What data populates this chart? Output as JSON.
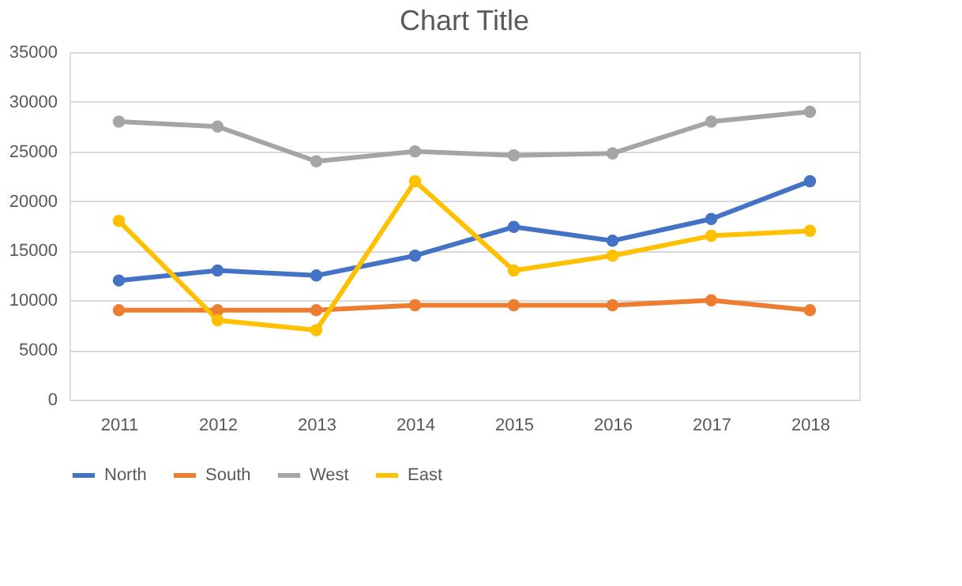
{
  "chart_data": {
    "type": "line",
    "title": "Chart Title",
    "categories": [
      "2011",
      "2012",
      "2013",
      "2014",
      "2015",
      "2016",
      "2017",
      "2018"
    ],
    "series": [
      {
        "name": "North",
        "color": "#4472c4",
        "values": [
          12000,
          13000,
          12500,
          14500,
          17400,
          16000,
          18200,
          22000
        ]
      },
      {
        "name": "South",
        "color": "#ed7d31",
        "values": [
          9000,
          9000,
          9000,
          9500,
          9500,
          9500,
          10000,
          9000
        ]
      },
      {
        "name": "West",
        "color": "#a5a5a5",
        "values": [
          28000,
          27500,
          24000,
          25000,
          24600,
          24800,
          28000,
          29000
        ]
      },
      {
        "name": "East",
        "color": "#ffc000",
        "values": [
          18000,
          8000,
          7000,
          22000,
          13000,
          14500,
          16500,
          17000
        ]
      }
    ],
    "ylim": [
      0,
      35000
    ],
    "yticks": [
      0,
      5000,
      10000,
      15000,
      20000,
      25000,
      30000,
      35000
    ],
    "grid": "y",
    "legend": "bottom",
    "marker": "circle",
    "line_style": "solid"
  }
}
